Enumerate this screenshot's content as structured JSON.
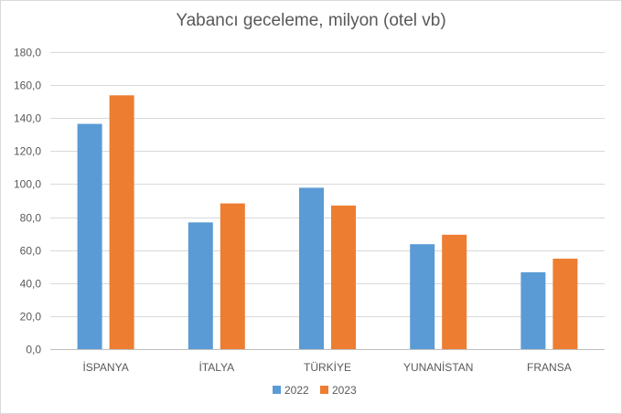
{
  "chart_data": {
    "type": "bar",
    "title": "Yabancı geceleme, milyon (otel vb)",
    "xlabel": "",
    "ylabel": "",
    "categories": [
      "İSPANYA",
      "İTALYA",
      "TÜRKİYE",
      "YUNANİSTAN",
      "FRANSA"
    ],
    "series": [
      {
        "name": "2022",
        "color": "#5b9bd5",
        "values": [
          136.5,
          76.8,
          97.8,
          63.6,
          46.6
        ]
      },
      {
        "name": "2023",
        "color": "#ed7d31",
        "values": [
          153.8,
          88.3,
          87.0,
          69.3,
          54.8
        ]
      }
    ],
    "ylim": [
      0,
      180
    ],
    "yticks": [
      0,
      20,
      40,
      60,
      80,
      100,
      120,
      140,
      160,
      180
    ],
    "ytick_labels": [
      "0,0",
      "20,0",
      "40,0",
      "60,0",
      "80,0",
      "100,0",
      "120,0",
      "140,0",
      "160,0",
      "180,0"
    ],
    "grid": true,
    "legend": "bottom"
  }
}
